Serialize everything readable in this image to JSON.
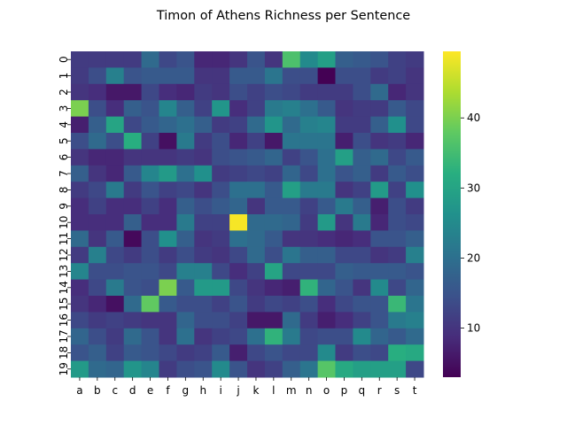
{
  "chart_data": {
    "type": "heatmap",
    "title": "Timon of Athens Richness per Sentence",
    "xlabel": "",
    "ylabel": "",
    "x_categories": [
      "a",
      "b",
      "c",
      "d",
      "e",
      "f",
      "g",
      "h",
      "i",
      "j",
      "k",
      "l",
      "m",
      "n",
      "o",
      "p",
      "q",
      "r",
      "s",
      "t"
    ],
    "y_categories": [
      "0",
      "1",
      "2",
      "3",
      "4",
      "5",
      "6",
      "7",
      "8",
      "9",
      "10",
      "11",
      "12",
      "13",
      "14",
      "15",
      "16",
      "17",
      "18",
      "19"
    ],
    "colorbar": {
      "vmin": 3,
      "vmax": 49.5,
      "ticks": [
        10,
        20,
        30,
        40
      ],
      "colormap": "viridis"
    },
    "values": [
      [
        11,
        11,
        11,
        11,
        19,
        13,
        15,
        8,
        8,
        10,
        15,
        10,
        36,
        25,
        29,
        17,
        16,
        15,
        12,
        11
      ],
      [
        11,
        14,
        23,
        15,
        16,
        16,
        16,
        10,
        10,
        16,
        16,
        21,
        14,
        14,
        3,
        14,
        14,
        11,
        12,
        10
      ],
      [
        10,
        9,
        6,
        6,
        13,
        9,
        8,
        11,
        10,
        14,
        12,
        14,
        13,
        11,
        11,
        11,
        14,
        19,
        8,
        10
      ],
      [
        40,
        14,
        9,
        17,
        15,
        24,
        17,
        12,
        27,
        9,
        12,
        22,
        23,
        20,
        16,
        10,
        11,
        11,
        16,
        13
      ],
      [
        7,
        17,
        30,
        13,
        16,
        18,
        20,
        17,
        11,
        12,
        19,
        27,
        19,
        23,
        24,
        11,
        11,
        17,
        26,
        13
      ],
      [
        14,
        19,
        14,
        32,
        12,
        5,
        22,
        11,
        14,
        8,
        12,
        6,
        21,
        21,
        21,
        7,
        14,
        10,
        11,
        8
      ],
      [
        10,
        8,
        8,
        10,
        10,
        10,
        11,
        10,
        14,
        15,
        16,
        18,
        12,
        15,
        20,
        29,
        17,
        19,
        13,
        16
      ],
      [
        17,
        10,
        8,
        16,
        24,
        28,
        20,
        26,
        11,
        12,
        13,
        12,
        18,
        13,
        20,
        15,
        17,
        11,
        16,
        14
      ],
      [
        11,
        13,
        22,
        11,
        15,
        12,
        13,
        10,
        14,
        20,
        20,
        16,
        29,
        22,
        22,
        10,
        12,
        28,
        12,
        26
      ],
      [
        9,
        12,
        9,
        9,
        12,
        9,
        17,
        14,
        16,
        18,
        10,
        16,
        16,
        12,
        16,
        22,
        17,
        7,
        14,
        11
      ],
      [
        9,
        9,
        9,
        17,
        9,
        9,
        22,
        12,
        12,
        49,
        19,
        19,
        18,
        11,
        28,
        10,
        22,
        8,
        14,
        13
      ],
      [
        19,
        10,
        16,
        4,
        14,
        26,
        17,
        10,
        11,
        20,
        19,
        16,
        10,
        10,
        9,
        8,
        9,
        15,
        15,
        17
      ],
      [
        11,
        23,
        13,
        11,
        14,
        11,
        14,
        11,
        10,
        13,
        19,
        14,
        21,
        17,
        17,
        13,
        13,
        10,
        11,
        23
      ],
      [
        24,
        14,
        14,
        15,
        15,
        13,
        23,
        23,
        13,
        9,
        12,
        30,
        13,
        13,
        13,
        17,
        16,
        16,
        16,
        15
      ],
      [
        9,
        13,
        22,
        15,
        14,
        40,
        16,
        28,
        28,
        13,
        10,
        8,
        7,
        33,
        18,
        15,
        10,
        25,
        13,
        18
      ],
      [
        10,
        8,
        5,
        19,
        38,
        16,
        14,
        14,
        12,
        15,
        11,
        13,
        12,
        14,
        9,
        13,
        15,
        15,
        34,
        21
      ],
      [
        13,
        11,
        12,
        11,
        10,
        10,
        18,
        14,
        14,
        12,
        6,
        6,
        19,
        11,
        7,
        9,
        12,
        15,
        22,
        23
      ],
      [
        18,
        14,
        11,
        19,
        15,
        10,
        20,
        10,
        12,
        13,
        20,
        33,
        22,
        13,
        14,
        14,
        25,
        18,
        16,
        19
      ],
      [
        15,
        17,
        12,
        16,
        15,
        13,
        11,
        12,
        16,
        7,
        13,
        15,
        13,
        13,
        25,
        11,
        14,
        13,
        32,
        31
      ],
      [
        28,
        19,
        18,
        27,
        24,
        11,
        14,
        15,
        25,
        15,
        10,
        12,
        17,
        21,
        37,
        31,
        29,
        29,
        29,
        13
      ]
    ]
  }
}
